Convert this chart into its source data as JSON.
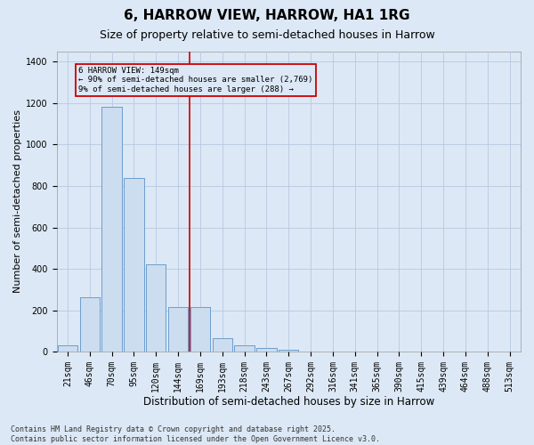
{
  "title": "6, HARROW VIEW, HARROW, HA1 1RG",
  "subtitle": "Size of property relative to semi-detached houses in Harrow",
  "xlabel": "Distribution of semi-detached houses by size in Harrow",
  "ylabel": "Number of semi-detached properties",
  "bin_labels": [
    "21sqm",
    "46sqm",
    "70sqm",
    "95sqm",
    "120sqm",
    "144sqm",
    "169sqm",
    "193sqm",
    "218sqm",
    "243sqm",
    "267sqm",
    "292sqm",
    "316sqm",
    "341sqm",
    "365sqm",
    "390sqm",
    "415sqm",
    "439sqm",
    "464sqm",
    "488sqm",
    "513sqm"
  ],
  "bar_values": [
    30,
    265,
    1180,
    840,
    420,
    215,
    215,
    65,
    30,
    20,
    10,
    0,
    0,
    0,
    0,
    0,
    0,
    0,
    0,
    0,
    0
  ],
  "bar_color": "#ccddf0",
  "bar_edge_color": "#6699cc",
  "grid_color": "#b8c8e0",
  "background_color": "#dce8f5",
  "property_line_x": 5.5,
  "annotation_line": "6 HARROW VIEW: 149sqm",
  "annotation_line2": "← 90% of semi-detached houses are smaller (2,769)",
  "annotation_line3": "9% of semi-detached houses are larger (288) →",
  "annotation_box_color": "#cc0000",
  "ylim": [
    0,
    1450
  ],
  "yticks": [
    0,
    200,
    400,
    600,
    800,
    1000,
    1200,
    1400
  ],
  "footer_text": "Contains HM Land Registry data © Crown copyright and database right 2025.\nContains public sector information licensed under the Open Government Licence v3.0.",
  "title_fontsize": 11,
  "subtitle_fontsize": 9,
  "xlabel_fontsize": 8.5,
  "ylabel_fontsize": 8,
  "tick_fontsize": 7,
  "footer_fontsize": 6
}
